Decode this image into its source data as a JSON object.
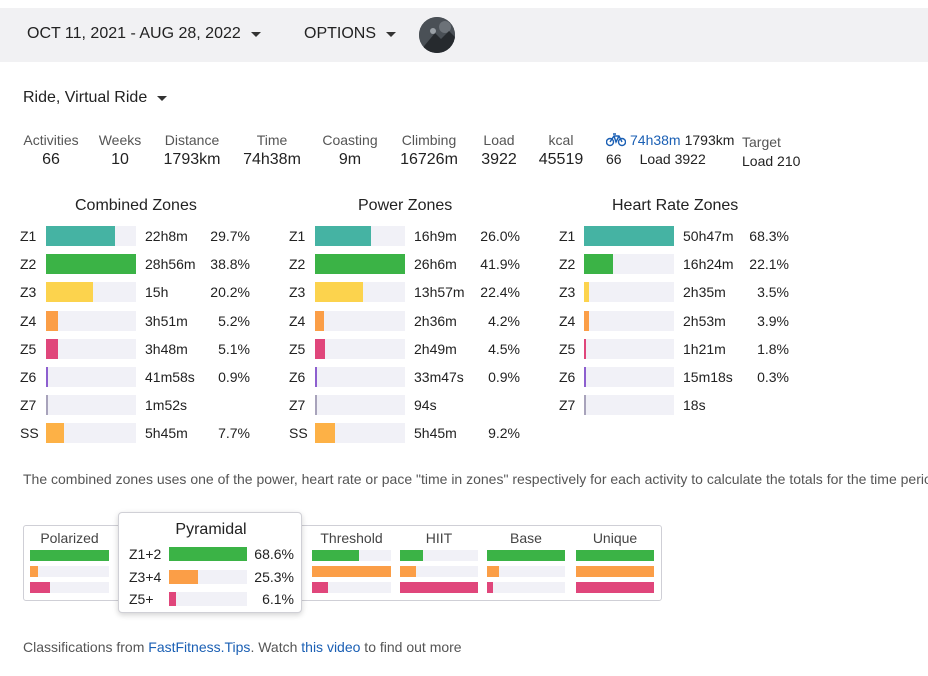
{
  "header": {
    "date_range": "OCT 11, 2021 - AUG 28, 2022",
    "options_label": "OPTIONS"
  },
  "filter": {
    "label": "Ride, Virtual Ride"
  },
  "stats": [
    {
      "label": "Activities",
      "value": "66"
    },
    {
      "label": "Weeks",
      "value": "10"
    },
    {
      "label": "Distance",
      "value": "1793km"
    },
    {
      "label": "Time",
      "value": "74h38m"
    },
    {
      "label": "Coasting",
      "value": "9m"
    },
    {
      "label": "Climbing",
      "value": "16726m"
    },
    {
      "label": "Load",
      "value": "3922"
    },
    {
      "label": "kcal",
      "value": "45519"
    }
  ],
  "ride_summary": {
    "time": "74h38m",
    "distance": "1793km",
    "count": "66",
    "load": "Load 3922"
  },
  "target": {
    "label": "Target",
    "value": "Load 210"
  },
  "colors": {
    "z1": "#45b3a3",
    "z2": "#3bb346",
    "z3": "#fcd34d",
    "z4": "#fb9e47",
    "z5": "#e0467b",
    "z6": "#8d5fcf",
    "z7": "#a8a3bb",
    "ss": "#fdb146",
    "link": "#1a5fb4"
  },
  "combined_zones": {
    "title": "Combined Zones",
    "rows": [
      {
        "zone": "Z1",
        "time": "22h8m",
        "pct": "29.7%",
        "frac": 0.297
      },
      {
        "zone": "Z2",
        "time": "28h56m",
        "pct": "38.8%",
        "frac": 0.388
      },
      {
        "zone": "Z3",
        "time": "15h",
        "pct": "20.2%",
        "frac": 0.202
      },
      {
        "zone": "Z4",
        "time": "3h51m",
        "pct": "5.2%",
        "frac": 0.052
      },
      {
        "zone": "Z5",
        "time": "3h48m",
        "pct": "5.1%",
        "frac": 0.051
      },
      {
        "zone": "Z6",
        "time": "41m58s",
        "pct": "0.9%",
        "frac": 0.009
      },
      {
        "zone": "Z7",
        "time": "1m52s",
        "pct": "",
        "frac": 0.001
      },
      {
        "zone": "SS",
        "time": "5h45m",
        "pct": "7.7%",
        "frac": 0.077
      }
    ]
  },
  "power_zones": {
    "title": "Power Zones",
    "rows": [
      {
        "zone": "Z1",
        "time": "16h9m",
        "pct": "26.0%",
        "frac": 0.26
      },
      {
        "zone": "Z2",
        "time": "26h6m",
        "pct": "41.9%",
        "frac": 0.419
      },
      {
        "zone": "Z3",
        "time": "13h57m",
        "pct": "22.4%",
        "frac": 0.224
      },
      {
        "zone": "Z4",
        "time": "2h36m",
        "pct": "4.2%",
        "frac": 0.042
      },
      {
        "zone": "Z5",
        "time": "2h49m",
        "pct": "4.5%",
        "frac": 0.045
      },
      {
        "zone": "Z6",
        "time": "33m47s",
        "pct": "0.9%",
        "frac": 0.009
      },
      {
        "zone": "Z7",
        "time": "94s",
        "pct": "",
        "frac": 0.001
      },
      {
        "zone": "SS",
        "time": "5h45m",
        "pct": "9.2%",
        "frac": 0.092
      }
    ]
  },
  "hr_zones": {
    "title": "Heart Rate Zones",
    "rows": [
      {
        "zone": "Z1",
        "time": "50h47m",
        "pct": "68.3%",
        "frac": 0.683
      },
      {
        "zone": "Z2",
        "time": "16h24m",
        "pct": "22.1%",
        "frac": 0.221
      },
      {
        "zone": "Z3",
        "time": "2h35m",
        "pct": "3.5%",
        "frac": 0.035
      },
      {
        "zone": "Z4",
        "time": "2h53m",
        "pct": "3.9%",
        "frac": 0.039
      },
      {
        "zone": "Z5",
        "time": "1h21m",
        "pct": "1.8%",
        "frac": 0.018
      },
      {
        "zone": "Z6",
        "time": "15m18s",
        "pct": "0.3%",
        "frac": 0.003
      },
      {
        "zone": "Z7",
        "time": "18s",
        "pct": "",
        "frac": 0.001
      }
    ]
  },
  "note": "The combined zones uses one of the power, heart rate or pace \"time in zones\" respectively for each activity to calculate the totals for the time period",
  "classifications": [
    {
      "name": "Polarized",
      "bars": [
        1.0,
        0.1,
        0.25
      ]
    },
    {
      "name": "Threshold",
      "bars": [
        0.6,
        1.0,
        0.2
      ]
    },
    {
      "name": "HIIT",
      "bars": [
        0.3,
        0.2,
        1.0
      ]
    },
    {
      "name": "Base",
      "bars": [
        1.0,
        0.15,
        0.08
      ]
    },
    {
      "name": "Unique",
      "bars": [
        1.0,
        1.0,
        1.0
      ]
    }
  ],
  "pyramidal": {
    "title": "Pyramidal",
    "rows": [
      {
        "label": "Z1+2",
        "pct": "68.6%",
        "frac": 0.686
      },
      {
        "label": "Z3+4",
        "pct": "25.3%",
        "frac": 0.253
      },
      {
        "label": "Z5+",
        "pct": "6.1%",
        "frac": 0.061
      }
    ]
  },
  "footer": {
    "prefix": "Classifications from ",
    "link1": "FastFitness.Tips",
    "middle": ". Watch ",
    "link2": "this video",
    "suffix": " to find out more"
  }
}
